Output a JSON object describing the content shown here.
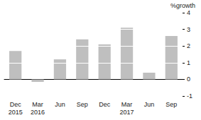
{
  "chart_data": {
    "type": "bar",
    "y_label": "%growth",
    "categories": [
      "Dec\n2015",
      "Mar\n2016",
      "Jun",
      "Sep",
      "Dec",
      "Mar\n2017",
      "Jun",
      "Sep"
    ],
    "values": [
      1.7,
      -0.15,
      1.2,
      2.4,
      2.1,
      3.1,
      0.4,
      2.6
    ],
    "color": "#bfbfbf",
    "ylim": [
      -1,
      4
    ],
    "yticks": [
      -1,
      0,
      1,
      2,
      3,
      4
    ],
    "grid": true
  }
}
